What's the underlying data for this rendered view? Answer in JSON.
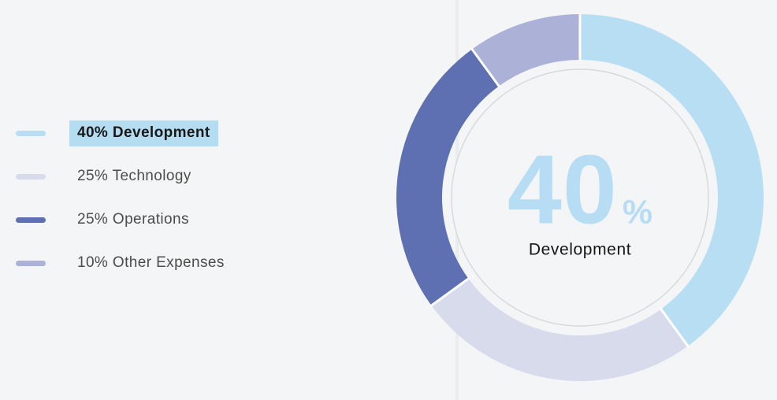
{
  "theme": {
    "background": "#f4f5f6",
    "divider": "#ececee",
    "segment_separator": "#ffffff",
    "inner_circle_fill": "#f4f5f6",
    "inner_circle_border": "#d9d9d9",
    "center_number_color": "#b6ddf4",
    "center_label_color": "#161616",
    "legend_text_color": "#4c4c4c",
    "highlight_background": "#b5ddf2"
  },
  "legend": {
    "items": [
      {
        "label": "40% Development",
        "category": "Development",
        "value": 40,
        "color": "#b7def2",
        "highlighted": true
      },
      {
        "label": "25% Technology",
        "category": "Technology",
        "value": 25,
        "color": "#d8dbec",
        "highlighted": false
      },
      {
        "label": "25% Operations",
        "category": "Operations",
        "value": 25,
        "color": "#5e70b1",
        "highlighted": false
      },
      {
        "label": "10% Other Expenses",
        "category": "Other Expenses",
        "value": 10,
        "color": "#acb1d7",
        "highlighted": false
      }
    ]
  },
  "chart_data": {
    "type": "pie",
    "variant": "donut",
    "categories": [
      "Development",
      "Technology",
      "Operations",
      "Other Expenses"
    ],
    "values": [
      40,
      25,
      25,
      10
    ],
    "colors": [
      "#b7def2",
      "#d8dbec",
      "#5e70b1",
      "#acb1d7"
    ],
    "unit": "%",
    "start_angle_deg": 0,
    "direction": "clockwise",
    "selected_index": 0,
    "legend_position": "left",
    "center": {
      "value": "40",
      "unit": "%",
      "label": "Development"
    }
  }
}
